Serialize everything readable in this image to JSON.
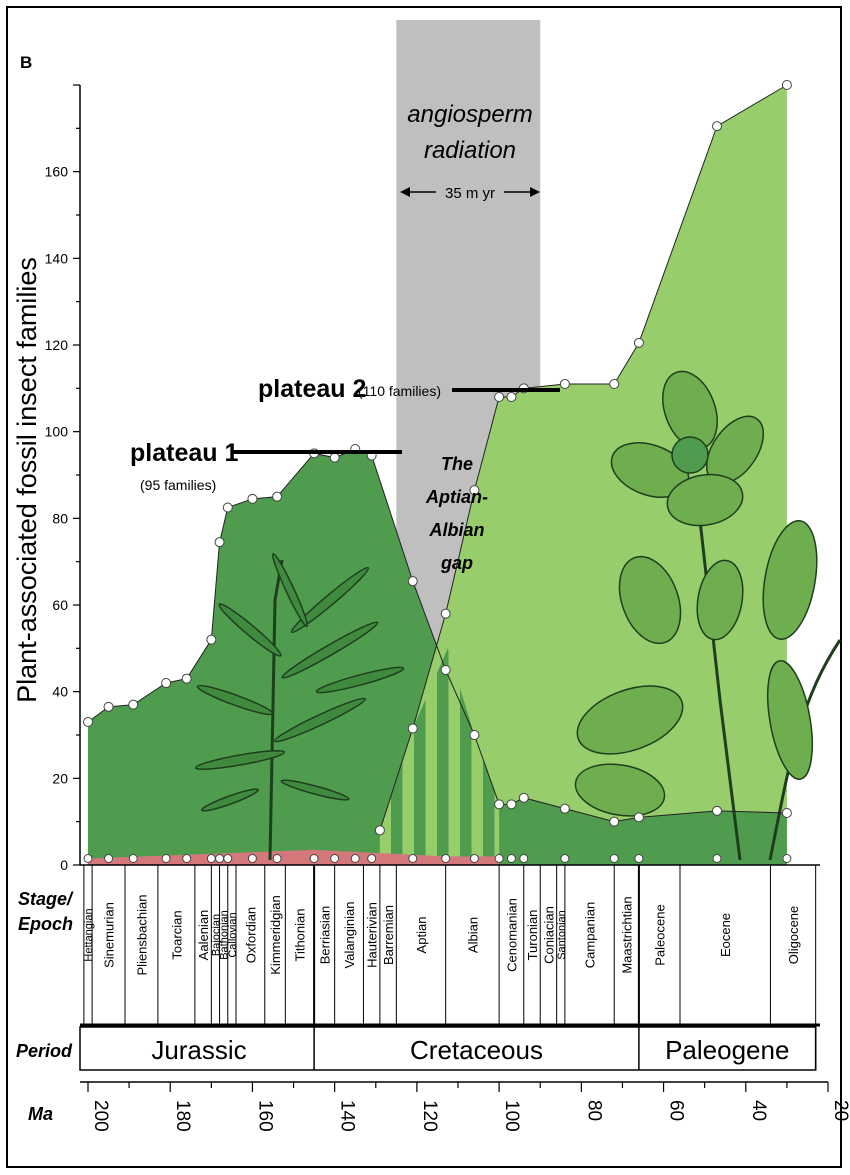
{
  "panel_label": "B",
  "chart_data": {
    "type": "area",
    "ylabel": "Plant-associated fossil insect families",
    "xlabel": "Ma",
    "xlim": [
      200,
      20
    ],
    "ylim": [
      0,
      180
    ],
    "yticks": [
      0,
      20,
      40,
      60,
      80,
      100,
      120,
      140,
      160
    ],
    "xticks": [
      200,
      180,
      160,
      140,
      120,
      100,
      80,
      60,
      40,
      20
    ],
    "colors": {
      "gymnosperm_assoc": "#4f9c4f",
      "angiosperm_assoc": "#98cd6c",
      "gap_band": "#bfbfc0",
      "base": "#d5787c"
    },
    "series": [
      {
        "values": [
          [
            200,
            33
          ],
          [
            195,
            36.5
          ],
          [
            189,
            37
          ],
          [
            181,
            42
          ],
          [
            176,
            43
          ],
          [
            170,
            52
          ],
          [
            168,
            74.5
          ],
          [
            166,
            82.5
          ],
          [
            160,
            84.5
          ],
          [
            154,
            85
          ],
          [
            145,
            95
          ],
          [
            140,
            94
          ],
          [
            135,
            96
          ],
          [
            131,
            94.5
          ],
          [
            121,
            65.5
          ],
          [
            113,
            45
          ],
          [
            106,
            30
          ],
          [
            100,
            14
          ],
          [
            97,
            14
          ],
          [
            94,
            15.5
          ],
          [
            84,
            13
          ],
          [
            72,
            10
          ],
          [
            66,
            11
          ],
          [
            47,
            12.5
          ],
          [
            30,
            12
          ]
        ]
      },
      {
        "values": [
          [
            129,
            8
          ],
          [
            121,
            31.5
          ],
          [
            113,
            58
          ],
          [
            106,
            86.5
          ],
          [
            100,
            108
          ],
          [
            97,
            108
          ],
          [
            94,
            110
          ],
          [
            84,
            111
          ],
          [
            72,
            111
          ],
          [
            66,
            120.5
          ],
          [
            47,
            170.5
          ],
          [
            30,
            180
          ]
        ]
      }
    ],
    "annotations": {
      "gap_label": "angiosperm radiation",
      "duration": "35 m yr",
      "gap_name": "The Aptian-Albian gap",
      "plateau1": "plateau 1",
      "plateau1_sub": "(95 families)",
      "plateau2": "plateau 2",
      "plateau2_sub": "(110 families)"
    }
  },
  "timescale": {
    "stage_header": "Stage/ Epoch",
    "period_header": "Period",
    "ma_header": "Ma",
    "stages": [
      "Hettangian",
      "Sinemurian",
      "Pliensbachian",
      "Toarcian",
      "Aalenian",
      "Bajocian",
      "Bathonian",
      "Callovian",
      "Oxfordian",
      "Kimmeridgian",
      "Tithonian",
      "Berriasian",
      "Valanginian",
      "Hauterivian",
      "Barremian",
      "Aptian",
      "Albian",
      "Cenomanian",
      "Turonian",
      "Coniacian",
      "Santonian",
      "Campanian",
      "Maastrichtian",
      "Paleocene",
      "Eocene",
      "Oligocene"
    ],
    "periods": [
      "Jurassic",
      "Cretaceous",
      "Paleogene"
    ]
  }
}
